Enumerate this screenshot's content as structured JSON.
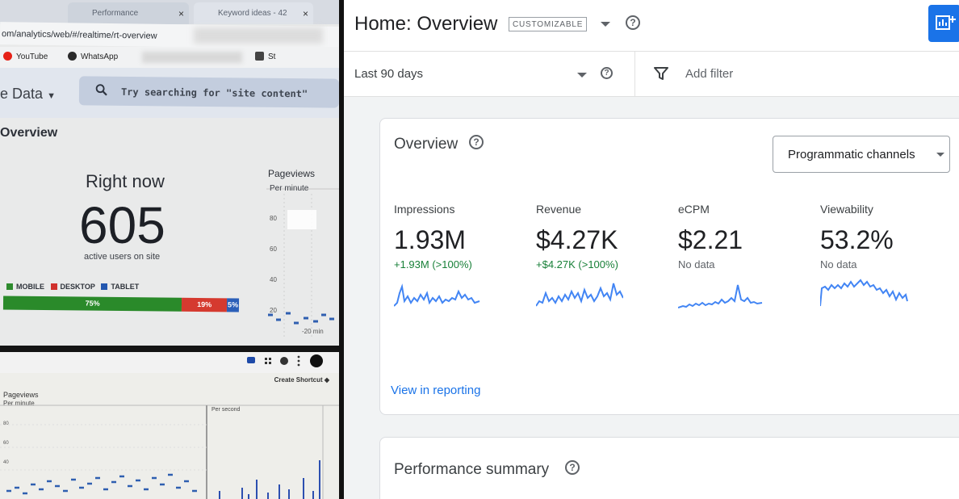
{
  "left_top": {
    "tabs": [
      "Performance",
      "Keyword ideas - 42"
    ],
    "tab_close": "×",
    "url": "om/analytics/web/#/realtime/rt-overview",
    "bookmarks": [
      "YouTube",
      "WhatsApp",
      "St"
    ],
    "data_menu": "e Data",
    "search_placeholder": "Try searching for \"site content\"",
    "section_title": "Overview",
    "right_now_label": "Right now",
    "right_now_value": "605",
    "right_now_sub": "active users on site",
    "legend": [
      {
        "label": "MOBILE",
        "color": "#2e8b2e"
      },
      {
        "label": "DESKTOP",
        "color": "#d0312d"
      },
      {
        "label": "TABLET",
        "color": "#2458b0"
      }
    ],
    "device_split": [
      {
        "label": "75%",
        "share": 75,
        "color": "#2a8a2a"
      },
      {
        "label": "19%",
        "share": 19,
        "color": "#d53a2f"
      },
      {
        "label": "5%",
        "share": 5,
        "color": "#2b5fb8"
      }
    ],
    "pageviews_title": "Pageviews",
    "pageviews_sub": "Per minute",
    "pageviews_ticks": [
      "80",
      "60",
      "40",
      "20"
    ],
    "time_label": "-20 min"
  },
  "left_bottom": {
    "create_shortcut": "Create Shortcut",
    "pageviews_title": "Pageviews",
    "pageviews_sub": "Per minute",
    "per_second": "Per second",
    "ticks": [
      "80",
      "60",
      "40"
    ]
  },
  "right": {
    "page_title": "Home: Overview",
    "badge": "CUSTOMIZABLE",
    "date_range": "Last 90 days",
    "add_filter": "Add filter",
    "overview_title": "Overview",
    "channel_select": "Programmatic channels",
    "metrics": [
      {
        "label": "Impressions",
        "value": "1.93M",
        "delta": "+1.93M (>100%)",
        "trend": "up"
      },
      {
        "label": "Revenue",
        "value": "$4.27K",
        "delta": "+$4.27K (>100%)",
        "trend": "up"
      },
      {
        "label": "eCPM",
        "value": "$2.21",
        "delta": "No data",
        "trend": "none"
      },
      {
        "label": "Viewability",
        "value": "53.2%",
        "delta": "No data",
        "trend": "none"
      }
    ],
    "view_reporting": "View in reporting",
    "performance_title": "Performance summary",
    "colors": {
      "accent": "#1a73e8",
      "positive": "#188038",
      "spark": "#4285f4"
    }
  }
}
